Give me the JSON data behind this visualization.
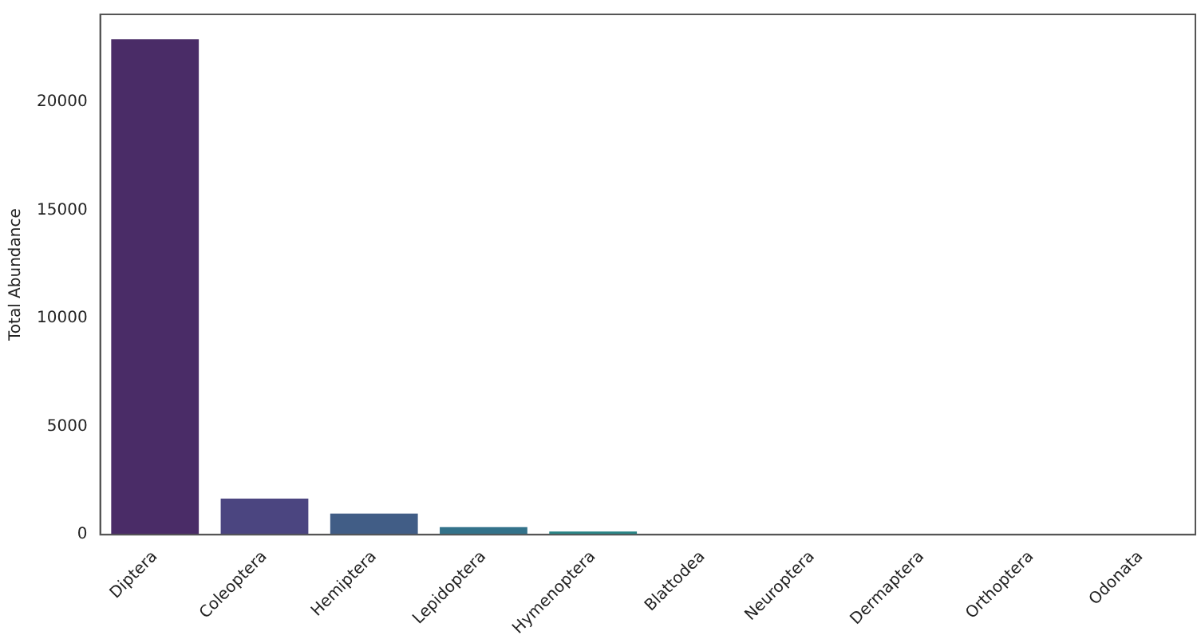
{
  "chart_data": {
    "type": "bar",
    "ylabel": "Total Abundance",
    "categories": [
      "Diptera",
      "Coleoptera",
      "Hemiptera",
      "Lepidoptera",
      "Hymenoptera",
      "Blattodea",
      "Neuroptera",
      "Dermaptera",
      "Orthoptera",
      "Odonata"
    ],
    "values": [
      22900,
      1670,
      980,
      350,
      150,
      null,
      null,
      null,
      null,
      null
    ],
    "colors": [
      "#4a2c67",
      "#4b4580",
      "#415d86",
      "#33728a",
      "#2a8687",
      "#23998a",
      "#2fad80",
      "#52c06d",
      "#86d04e",
      "#c2dc30"
    ],
    "ylim": [
      0,
      24050
    ],
    "yticks": [
      0,
      5000,
      10000,
      15000,
      20000
    ],
    "grid": false,
    "legend": false
  }
}
